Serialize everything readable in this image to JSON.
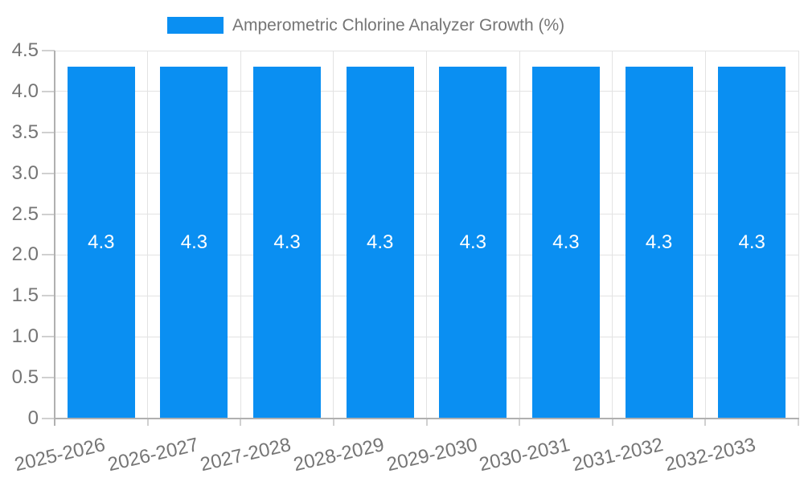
{
  "legend": {
    "label": "Amperometric Chlorine Analyzer Growth (%)"
  },
  "chart_data": {
    "type": "bar",
    "title": "Amperometric Chlorine Analyzer Growth (%)",
    "categories": [
      "2025-2026",
      "2026-2027",
      "2027-2028",
      "2028-2029",
      "2029-2030",
      "2030-2031",
      "2031-2032",
      "2032-2033"
    ],
    "values": [
      4.3,
      4.3,
      4.3,
      4.3,
      4.3,
      4.3,
      4.3,
      4.3
    ],
    "bar_value_labels": [
      "4.3",
      "4.3",
      "4.3",
      "4.3",
      "4.3",
      "4.3",
      "4.3",
      "4.3"
    ],
    "xlabel": "",
    "ylabel": "",
    "ylim": [
      0,
      4.5
    ],
    "ytick_labels": [
      "0",
      "0.5",
      "1.0",
      "1.5",
      "2.0",
      "2.5",
      "3.0",
      "3.5",
      "4.0",
      "4.5"
    ],
    "grid": true,
    "legend_position": "top",
    "colors": {
      "bar": "#0a8ff2",
      "grid": "#e3e3e3",
      "axis_line": "#b0b0b0",
      "tick": "#d0d0d0",
      "axis_text": "#757575",
      "legend_text": "#757575",
      "value_text": "#ffffff"
    }
  }
}
